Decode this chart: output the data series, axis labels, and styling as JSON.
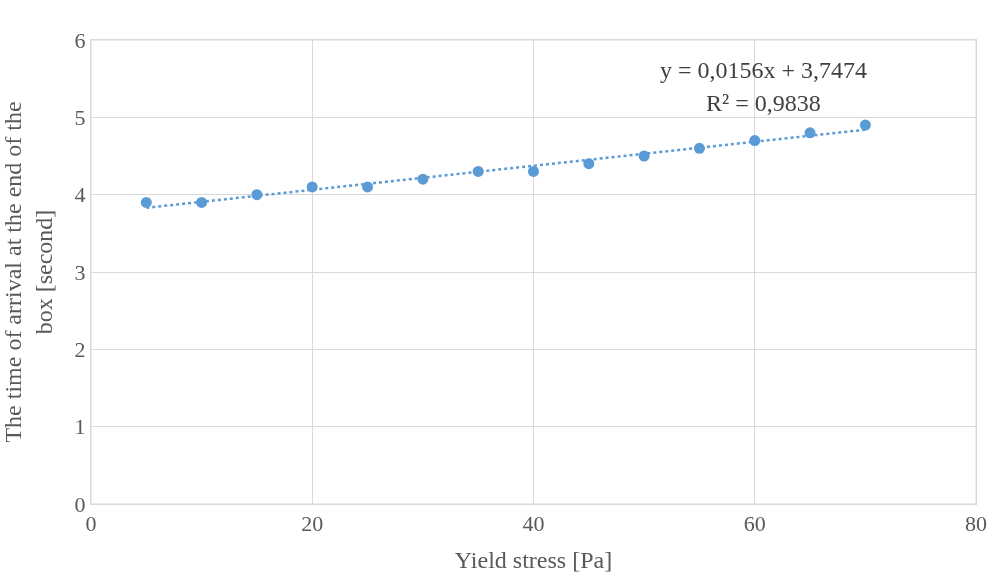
{
  "chart_data": {
    "type": "scatter",
    "xlabel": "Yield stress [Pa]",
    "ylabel": "The time of arrival at the end of the box [second]",
    "xlim": [
      0,
      80
    ],
    "xticks": [
      0,
      20,
      40,
      60,
      80
    ],
    "ylim": [
      0,
      6
    ],
    "yticks": [
      0,
      1,
      2,
      3,
      4,
      5,
      6
    ],
    "grid": true,
    "series": [
      {
        "color": "#5b9bd5",
        "marker": "circle",
        "x": [
          5,
          10,
          15,
          20,
          25,
          30,
          35,
          40,
          45,
          50,
          55,
          60,
          65,
          70
        ],
        "values": [
          3.9,
          3.9,
          4.0,
          4.1,
          4.1,
          4.2,
          4.3,
          4.3,
          4.4,
          4.5,
          4.6,
          4.7,
          4.8,
          4.9
        ]
      },
      {
        "type": "line",
        "color": "#5b9bd5",
        "line_style": "dotted",
        "x": [
          5,
          70
        ],
        "values": [
          3.83,
          4.84
        ]
      }
    ],
    "annotations": [
      "y = 0,0156x + 3,7474",
      "R² = 0,9838"
    ]
  }
}
